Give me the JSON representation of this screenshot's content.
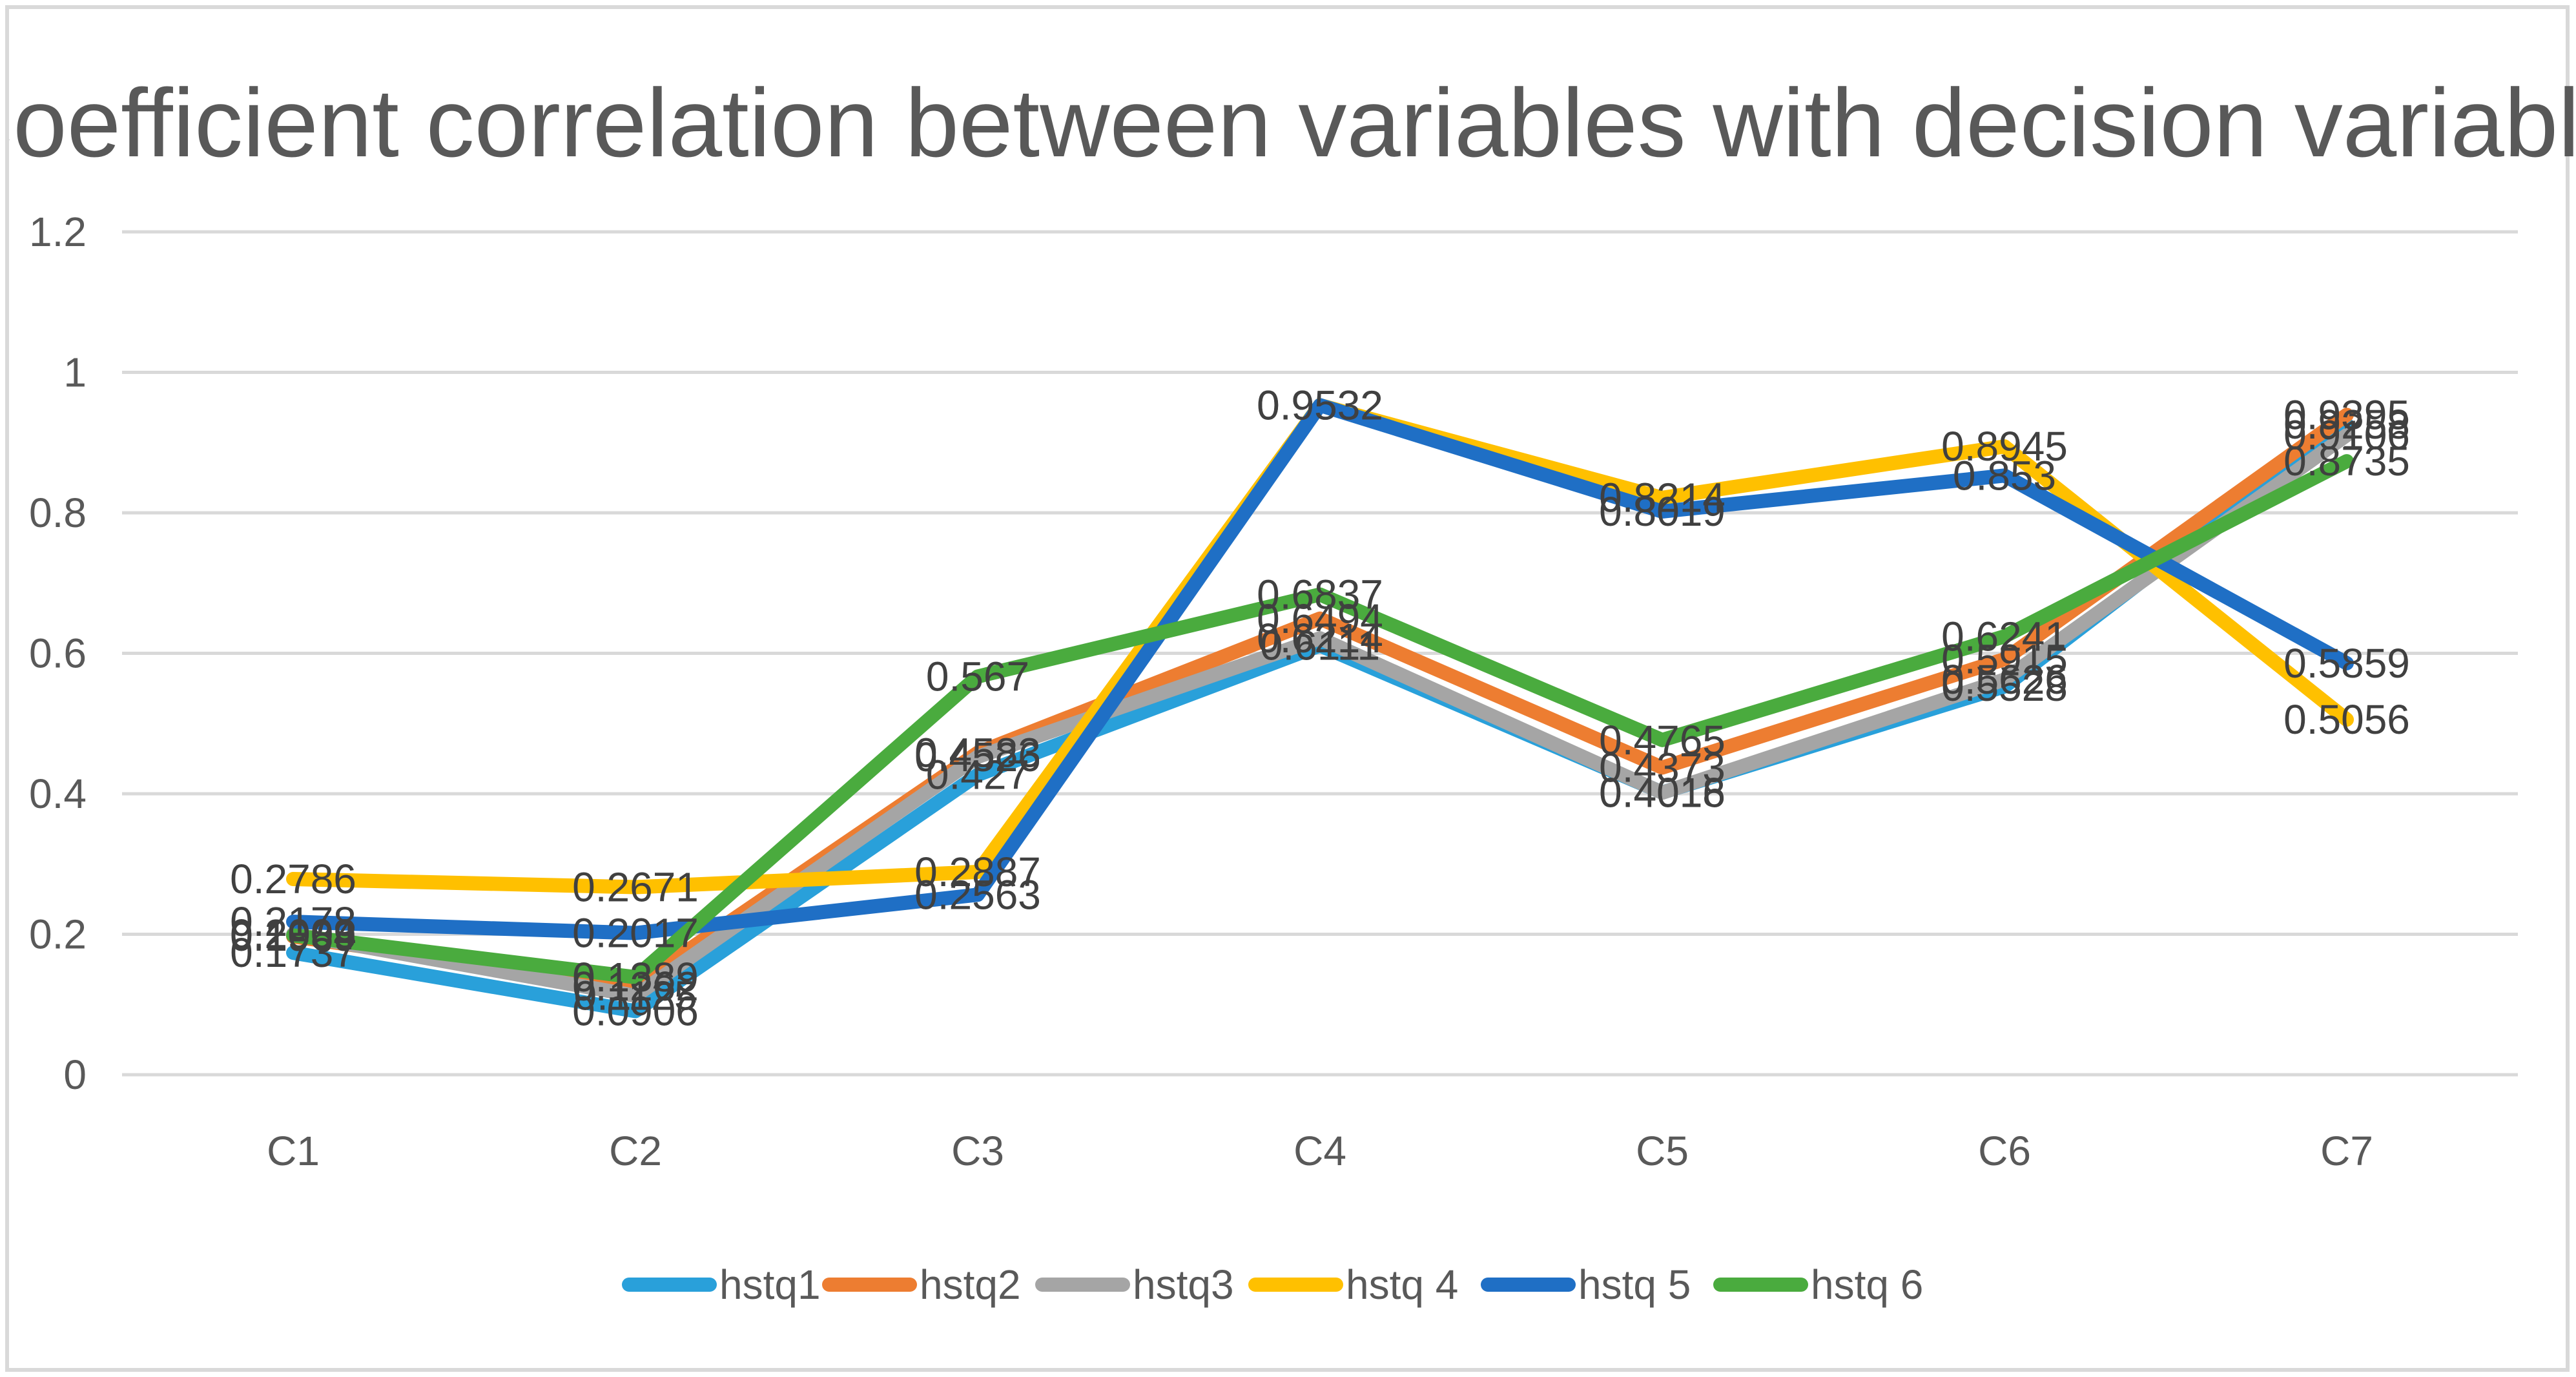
{
  "chart_data": {
    "type": "line",
    "title": "Coefficient correlation between variables with decision variable",
    "xlabel": "",
    "ylabel": "",
    "categories": [
      "C1",
      "C2",
      "C3",
      "C4",
      "C5",
      "C6",
      "C7"
    ],
    "ylim": [
      0,
      1.2
    ],
    "yticks": [
      "0",
      "0.2",
      "0.4",
      "0.6",
      "0.8",
      "1",
      "1.2"
    ],
    "grid": true,
    "legend_position": "bottom",
    "series": [
      {
        "name": "hstq1",
        "color": "#29a0da",
        "values": [
          0.1737,
          0.0906,
          0.427,
          0.6111,
          0.4018,
          0.5528,
          0.9258
        ],
        "labels": [
          "0.1737",
          "0.0906",
          "0.427",
          "0.6111",
          "0.4018",
          "0.5528",
          "0.9258"
        ]
      },
      {
        "name": "hstq2",
        "color": "#ed7d31",
        "values": [
          0.1969,
          0.1262,
          0.4583,
          0.6494,
          0.4373,
          0.5915,
          0.9395
        ],
        "labels": [
          "0.1969",
          "0.1262",
          "0.4583",
          "0.6494",
          "0.4373",
          "0.5915",
          "0.9395"
        ]
      },
      {
        "name": "hstq3",
        "color": "#a5a5a5",
        "values": [
          0.2003,
          0.1125,
          0.4526,
          0.6214,
          0.4016,
          0.5626,
          0.9106
        ],
        "labels": [
          "0.2003",
          "0.1125",
          "0.4526",
          "0.6214",
          "0.4016",
          "0.5626",
          "0.9106"
        ]
      },
      {
        "name": "hstq 4",
        "color": "#ffc000",
        "values": [
          0.2786,
          0.2671,
          0.2887,
          0.9532,
          0.8214,
          0.8945,
          0.5056
        ],
        "labels": [
          "0.2786",
          "0.2671",
          "0.2887",
          "0.9532",
          "0.8214",
          "0.8945",
          "0.5056"
        ]
      },
      {
        "name": "hstq 5",
        "color": "#1f6fc5",
        "values": [
          0.2178,
          0.2017,
          0.2563,
          0.9532,
          0.8019,
          0.853,
          0.5859
        ],
        "labels": [
          "0.2178",
          "0.2017",
          "0.2563",
          "0.9532",
          "0.8019",
          "0.853",
          "0.5859"
        ]
      },
      {
        "name": "hstq 6",
        "color": "#4aab3e",
        "values": [
          0.1984,
          0.1389,
          0.567,
          0.6837,
          0.4765,
          0.6241,
          0.8735
        ],
        "labels": [
          "0.1984",
          "0.1389",
          "0.567",
          "0.6837",
          "0.4765",
          "0.6241",
          "0.8735"
        ]
      }
    ]
  }
}
